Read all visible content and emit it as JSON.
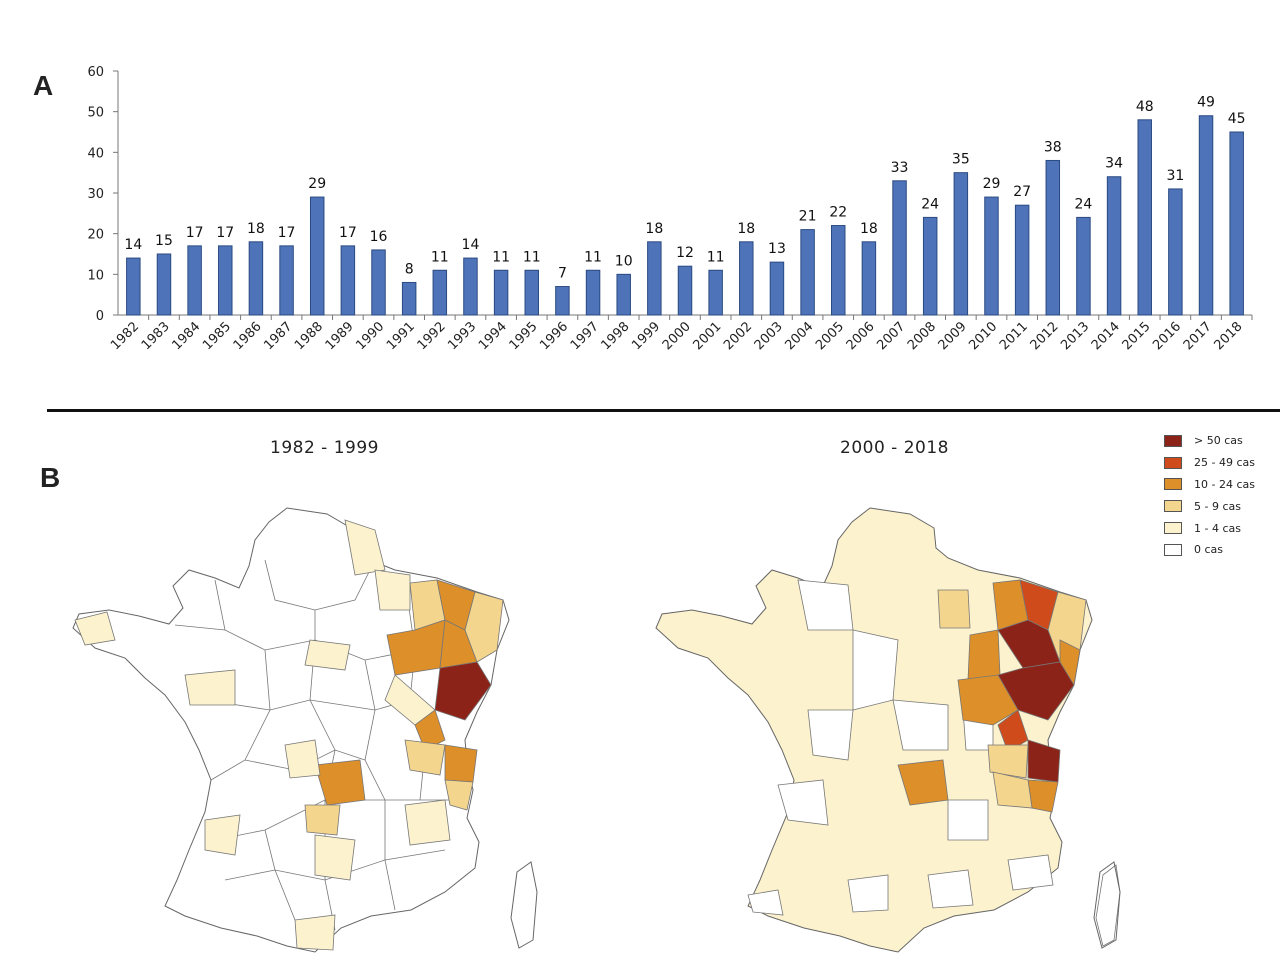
{
  "panel_a_letter": "A",
  "panel_b_letter": "B",
  "chart_data": {
    "type": "bar",
    "categories": [
      "1982",
      "1983",
      "1984",
      "1985",
      "1986",
      "1987",
      "1988",
      "1989",
      "1990",
      "1991",
      "1992",
      "1993",
      "1994",
      "1995",
      "1996",
      "1997",
      "1998",
      "1999",
      "2000",
      "2001",
      "2002",
      "2003",
      "2004",
      "2005",
      "2006",
      "2007",
      "2008",
      "2009",
      "2010",
      "2011",
      "2012",
      "2013",
      "2014",
      "2015",
      "2016",
      "2017",
      "2018"
    ],
    "values": [
      14,
      15,
      17,
      17,
      18,
      17,
      29,
      17,
      16,
      8,
      11,
      14,
      11,
      11,
      7,
      11,
      10,
      18,
      12,
      11,
      18,
      13,
      21,
      22,
      18,
      33,
      24,
      35,
      29,
      27,
      38,
      24,
      34,
      48,
      31,
      49,
      45
    ],
    "ylim": [
      0,
      60
    ],
    "yticks": [
      0,
      10,
      20,
      30,
      40,
      50,
      60
    ],
    "grid": false,
    "data_labels": true,
    "bar_color": "#4f73b8",
    "bar_edge_color": "#2a4a82"
  },
  "maps": {
    "left_title": "1982 - 1999",
    "right_title": "2000 - 2018"
  },
  "legend": {
    "items": [
      {
        "label": "> 50 cas",
        "color": "#8b2318"
      },
      {
        "label": "25 - 49 cas",
        "color": "#cf4b1c"
      },
      {
        "label": "10 - 24 cas",
        "color": "#dd8f2a"
      },
      {
        "label": "5 - 9 cas",
        "color": "#f3d58e"
      },
      {
        "label": "1 - 4 cas",
        "color": "#fcf2ce"
      },
      {
        "label": "0 cas",
        "color": "#ffffff"
      }
    ]
  }
}
